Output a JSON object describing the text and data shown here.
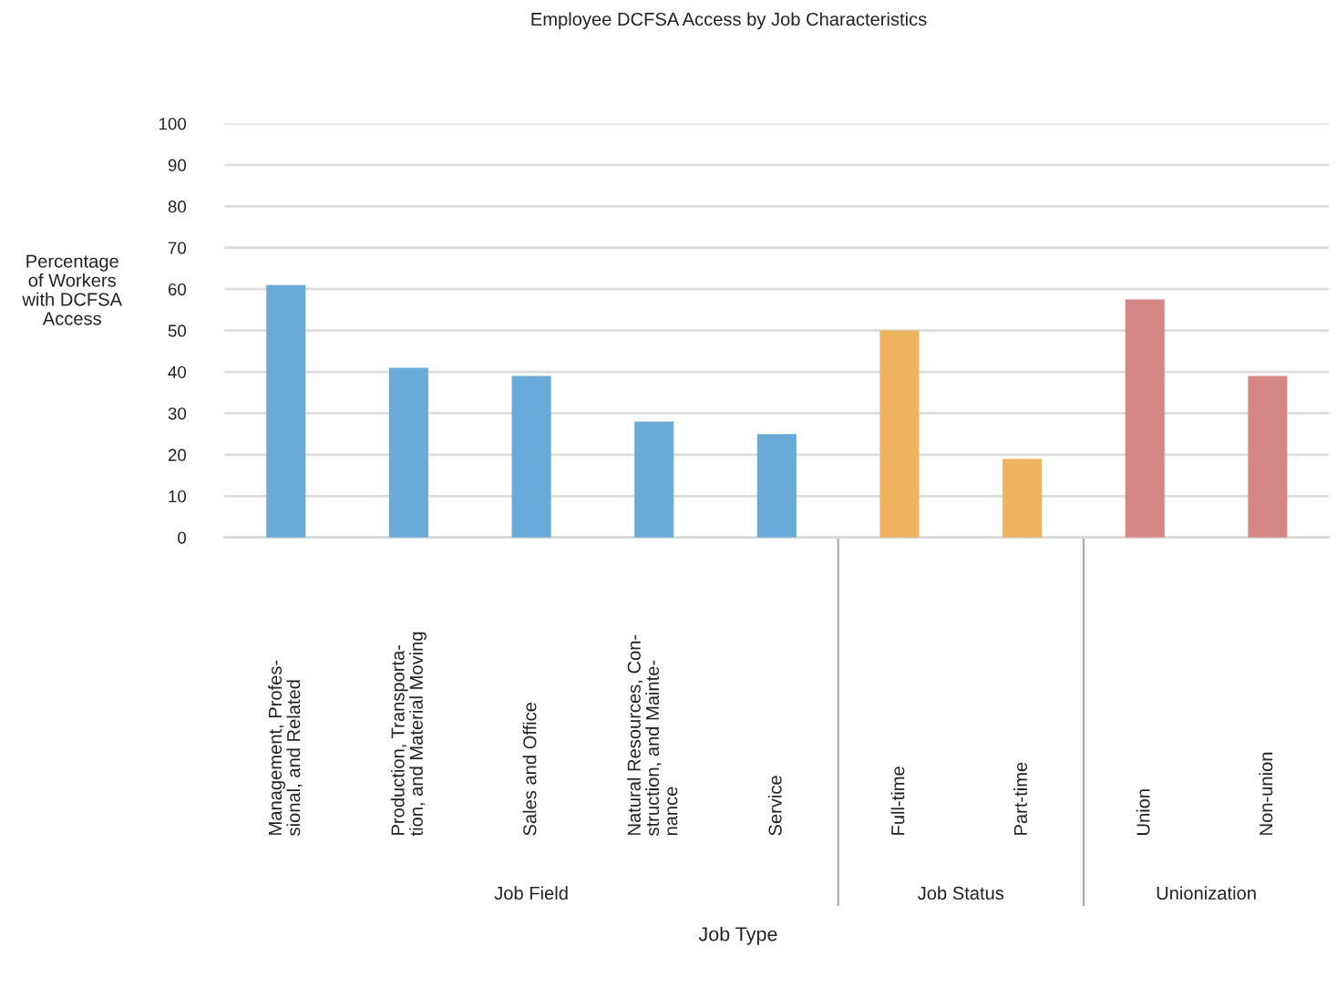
{
  "chart_data": {
    "type": "bar",
    "title": "Employee DCFSA Access by Job Characteristics",
    "xlabel": "Job Type",
    "ylabel": "Percentage\nof Workers\nwith DCFSA\nAccess",
    "categories": [
      "Management, Profes-\nsional, and Related",
      "Production, Transporta-\ntion, and Material Moving",
      "Sales and Office",
      "Natural Resources, Con-\nstruction, and Mainte-\nnance",
      "Service",
      "Full-time",
      "Part-time",
      "Union",
      "Non-union"
    ],
    "series": [
      {
        "color": "#6aaad9",
        "values": [
          61,
          41,
          39,
          28,
          25,
          null,
          null,
          null,
          null
        ]
      },
      {
        "color": "#eeb35e",
        "values": [
          null,
          null,
          null,
          null,
          null,
          50,
          19,
          null,
          null
        ]
      },
      {
        "color": "#d48784",
        "values": [
          null,
          null,
          null,
          null,
          null,
          null,
          null,
          57.5,
          39
        ]
      }
    ],
    "annotations": [
      "Job Field",
      "Job Status",
      "Unionization"
    ],
    "ylim": [
      0,
      100
    ],
    "yticks": [
      0,
      10,
      20,
      30,
      40,
      50,
      60,
      70,
      80,
      90,
      100
    ],
    "grid": "y"
  }
}
